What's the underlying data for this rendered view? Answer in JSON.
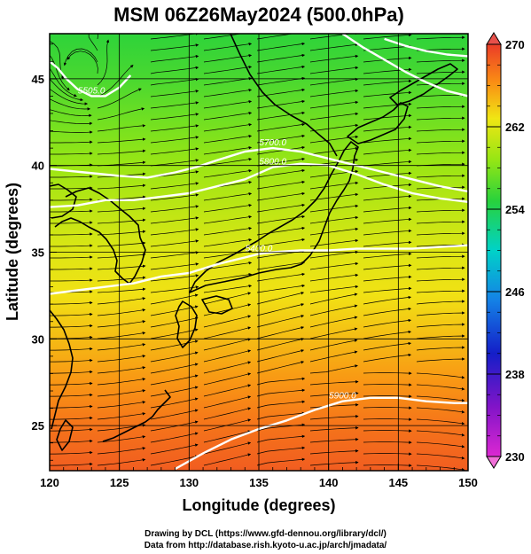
{
  "chart_data": {
    "type": "heatmap",
    "title": "MSM 06Z26May2024 (500.0hPa)",
    "xlabel": "Longitude (degrees)",
    "ylabel": "Latitude  (degrees)",
    "xlim": [
      120,
      150
    ],
    "ylim": [
      22.4,
      47.6
    ],
    "x_ticks": [
      120,
      125,
      130,
      135,
      140,
      145,
      150
    ],
    "x_tick_labels": [
      "120",
      "125",
      "130",
      "135",
      "140",
      "145",
      "150"
    ],
    "y_ticks": [
      25,
      30,
      35,
      40,
      45
    ],
    "y_tick_labels": [
      "25",
      "30",
      "35",
      "40",
      "45"
    ],
    "grid": true,
    "colorbar": {
      "min": 230,
      "max": 270,
      "ticks": [
        230,
        238,
        246,
        254,
        262,
        270
      ],
      "tick_labels": [
        "230",
        "238",
        "246",
        "254",
        "262",
        "270"
      ],
      "extend": "both",
      "placement": "right"
    },
    "temperature_field": {
      "lat_rows": [
        47.6,
        45,
        42.5,
        40,
        37.5,
        35,
        32.5,
        30,
        27.5,
        25,
        22.4
      ],
      "values_by_lat": [
        255,
        256,
        257.5,
        259,
        260.5,
        262,
        263,
        264.5,
        266,
        267.5,
        268.5
      ]
    },
    "height_contours": [
      {
        "label": "5505.0",
        "points": [
          [
            119.7,
            46.2
          ],
          [
            120.6,
            45.6
          ],
          [
            121.2,
            45.0
          ],
          [
            122.0,
            44.4
          ],
          [
            123.0,
            44.0
          ],
          [
            124.0,
            44.0
          ],
          [
            125.0,
            44.5
          ],
          [
            125.8,
            45.2
          ]
        ]
      },
      {
        "label": "5700.0",
        "points": [
          [
            120.0,
            39.8
          ],
          [
            122.5,
            39.6
          ],
          [
            125.0,
            39.4
          ],
          [
            127.0,
            39.3
          ],
          [
            129.0,
            39.6
          ],
          [
            130.5,
            39.9
          ],
          [
            132.0,
            40.3
          ],
          [
            134.0,
            40.8
          ],
          [
            136.0,
            41.0
          ],
          [
            138.0,
            40.8
          ],
          [
            140.0,
            40.4
          ],
          [
            142.0,
            40.0
          ],
          [
            144.0,
            39.6
          ],
          [
            146.0,
            39.2
          ],
          [
            148.0,
            38.8
          ],
          [
            150.0,
            38.5
          ]
        ]
      },
      {
        "label": "5800.0",
        "points": [
          [
            120.0,
            37.6
          ],
          [
            122.0,
            37.7
          ],
          [
            124.0,
            38.0
          ],
          [
            126.0,
            38.0
          ],
          [
            128.0,
            38.2
          ],
          [
            130.0,
            38.4
          ],
          [
            132.0,
            38.8
          ],
          [
            134.0,
            39.2
          ],
          [
            136.0,
            39.9
          ],
          [
            138.0,
            40.1
          ],
          [
            140.0,
            40.0
          ],
          [
            142.0,
            39.5
          ],
          [
            144.0,
            38.9
          ],
          [
            146.0,
            38.4
          ],
          [
            148.0,
            38.1
          ],
          [
            150.0,
            37.9
          ]
        ]
      },
      {
        "label": "5400.0",
        "points": [
          [
            120.0,
            32.6
          ],
          [
            122.0,
            32.8
          ],
          [
            124.0,
            33.0
          ],
          [
            126.0,
            33.2
          ],
          [
            128.0,
            33.6
          ],
          [
            130.0,
            33.8
          ],
          [
            132.0,
            34.3
          ],
          [
            134.0,
            34.7
          ],
          [
            135.0,
            34.9
          ],
          [
            136.0,
            35.0
          ],
          [
            138.0,
            35.1
          ],
          [
            140.0,
            35.1
          ],
          [
            142.0,
            35.2
          ],
          [
            144.0,
            35.2
          ],
          [
            146.0,
            35.2
          ],
          [
            148.0,
            35.3
          ],
          [
            150.0,
            35.4
          ]
        ]
      },
      {
        "label": "5900.0",
        "points": [
          [
            129.0,
            22.5
          ],
          [
            131.0,
            23.4
          ],
          [
            133.0,
            24.2
          ],
          [
            135.0,
            24.8
          ],
          [
            137.0,
            25.3
          ],
          [
            139.0,
            25.9
          ],
          [
            141.0,
            26.4
          ],
          [
            143.0,
            26.6
          ],
          [
            145.0,
            26.6
          ],
          [
            147.0,
            26.4
          ],
          [
            149.0,
            26.3
          ],
          [
            150.0,
            26.3
          ]
        ]
      },
      {
        "label": "",
        "points": [
          [
            141.0,
            47.6
          ],
          [
            142.5,
            46.8
          ],
          [
            144.0,
            46.1
          ],
          [
            145.5,
            45.4
          ],
          [
            147.0,
            44.8
          ],
          [
            148.5,
            44.3
          ],
          [
            150.0,
            44.0
          ]
        ]
      },
      {
        "label": "",
        "points": [
          [
            144.0,
            47.3
          ],
          [
            145.5,
            46.9
          ],
          [
            147.0,
            46.6
          ],
          [
            148.5,
            46.4
          ],
          [
            150.0,
            46.3
          ]
        ]
      }
    ]
  },
  "credits": {
    "line1": "Drawing by DCL (https://www.gfd-dennou.org/library/dcl/)",
    "line2": "Data from http://database.rish.kyoto-u.ac.jp/arch/jmadata/"
  }
}
